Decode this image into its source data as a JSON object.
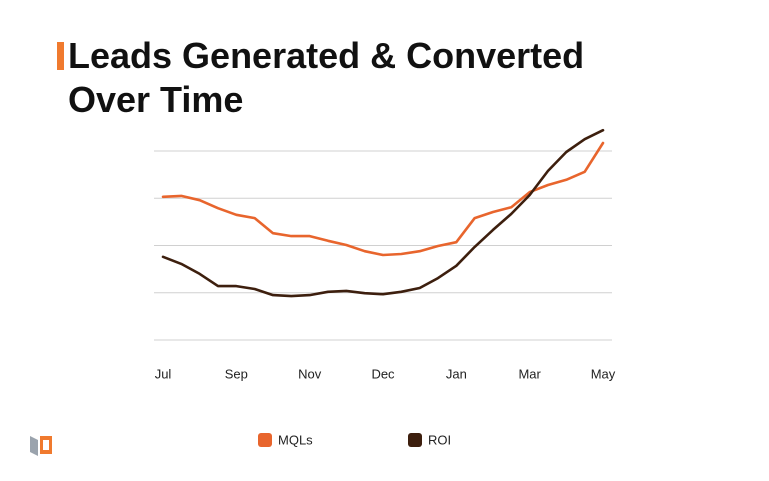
{
  "chart_data": {
    "type": "line",
    "title": "Leads Generated & Converted Over Time",
    "categories": [
      "Jul",
      null,
      null,
      null,
      "Sep",
      null,
      null,
      null,
      "Nov",
      null,
      null,
      null,
      "Dec",
      null,
      null,
      null,
      "Jan",
      null,
      null,
      null,
      "Mar",
      null,
      null,
      null,
      "May"
    ],
    "series": [
      {
        "name": "MQLs",
        "color": "#e8652d",
        "values": [
          3.03,
          3.05,
          2.96,
          2.79,
          2.65,
          2.58,
          2.26,
          2.2,
          2.2,
          2.1,
          2.01,
          1.88,
          1.8,
          1.82,
          1.88,
          1.99,
          2.07,
          2.58,
          2.71,
          2.81,
          3.13,
          3.28,
          3.39,
          3.56,
          4.17
        ]
      },
      {
        "name": "ROI",
        "color": "#3d1f0e",
        "values": [
          1.76,
          1.61,
          1.4,
          1.14,
          1.14,
          1.08,
          0.95,
          0.93,
          0.95,
          1.02,
          1.04,
          0.99,
          0.97,
          1.02,
          1.1,
          1.31,
          1.57,
          1.97,
          2.33,
          2.67,
          3.07,
          3.58,
          3.98,
          4.25,
          4.44
        ]
      }
    ],
    "ylim": [
      0,
      4.5
    ],
    "yticks": [
      0,
      1,
      2,
      3,
      4
    ],
    "grid": true
  }
}
